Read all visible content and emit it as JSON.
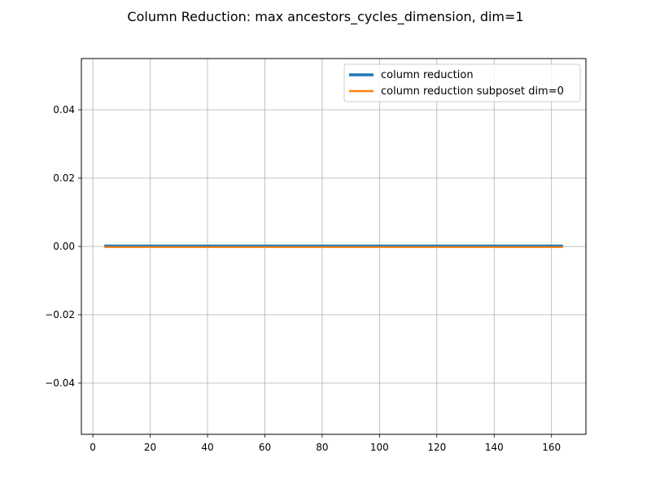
{
  "chart_data": {
    "type": "line",
    "title": "Column Reduction: max ancestors_cycles_dimension, dim=1",
    "xlabel": "",
    "ylabel": "",
    "xlim": [
      -4,
      172
    ],
    "ylim": [
      -0.055,
      0.055
    ],
    "x_ticks": [
      0,
      20,
      40,
      60,
      80,
      100,
      120,
      140,
      160
    ],
    "y_ticks": [
      -0.04,
      -0.02,
      0.0,
      0.02,
      0.04
    ],
    "x_tick_labels": [
      "0",
      "20",
      "40",
      "60",
      "80",
      "100",
      "120",
      "140",
      "160"
    ],
    "y_tick_labels": [
      "−0.04",
      "−0.02",
      "0.00",
      "0.02",
      "0.04"
    ],
    "grid": true,
    "legend_position": "top-right",
    "series": [
      {
        "name": "column reduction",
        "color": "#1f77b4",
        "x": [
          4,
          164
        ],
        "y": [
          0,
          0
        ]
      },
      {
        "name": "column reduction subposet dim=0",
        "color": "#ff7f0e",
        "x": [
          4,
          164
        ],
        "y": [
          0,
          0
        ]
      }
    ]
  }
}
